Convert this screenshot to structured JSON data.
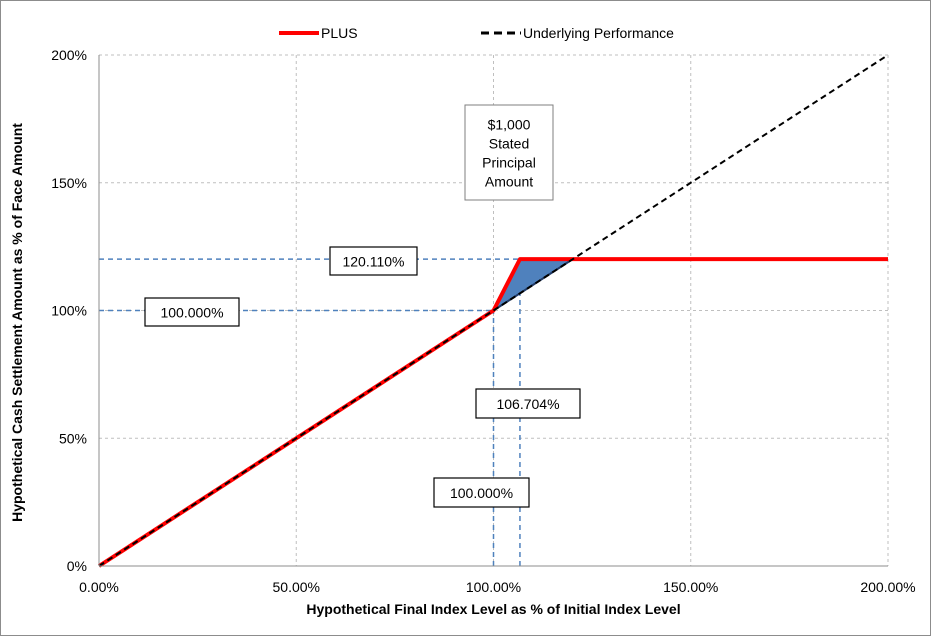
{
  "chart_data": {
    "type": "line",
    "xlabel": "Hypothetical Final Index Level as % of Initial Index Level",
    "ylabel": "Hypothetical Cash Settlement Amount as % of Face Amount",
    "xlim": [
      0,
      200
    ],
    "ylim": [
      0,
      200
    ],
    "x_ticks": [
      0,
      50,
      100,
      150,
      200
    ],
    "x_tick_labels": [
      "0.00%",
      "50.00%",
      "100.00%",
      "150.00%",
      "200.00%"
    ],
    "y_ticks": [
      0,
      50,
      100,
      150,
      200
    ],
    "y_tick_labels": [
      "0%",
      "50%",
      "100%",
      "150%",
      "200%"
    ],
    "grid": true,
    "legend_position": "top-center",
    "series": [
      {
        "name": "PLUS",
        "color": "#ff0000",
        "style": "solid",
        "x": [
          0,
          100,
          106.704,
          200
        ],
        "y": [
          0,
          100,
          120.11,
          120.11
        ]
      },
      {
        "name": "Underlying Performance",
        "color": "#000000",
        "style": "dashed",
        "x": [
          0,
          200
        ],
        "y": [
          0,
          200
        ]
      }
    ],
    "shaded_region": {
      "color": "#4f81bd",
      "x": [
        100,
        106.704,
        120.11
      ],
      "y": [
        100,
        120.11,
        120.11
      ]
    },
    "reference_lines": [
      {
        "axis": "y",
        "value": 120.11,
        "x_end": 106.704,
        "color": "#4f81bd"
      },
      {
        "axis": "y",
        "value": 100,
        "x_end": 100,
        "color": "#4f81bd"
      },
      {
        "axis": "x",
        "value": 100,
        "y_end": 100,
        "color": "#4f81bd"
      },
      {
        "axis": "x",
        "value": 106.704,
        "y_end": 120.11,
        "color": "#4f81bd"
      }
    ],
    "annotations": [
      {
        "lines": [
          "$1,000",
          "Stated",
          "Principal",
          "Amount"
        ]
      },
      {
        "lines": [
          "120.110%"
        ]
      },
      {
        "lines": [
          "100.000%"
        ]
      },
      {
        "lines": [
          "106.704%"
        ]
      },
      {
        "lines": [
          "100.000%"
        ]
      }
    ]
  }
}
